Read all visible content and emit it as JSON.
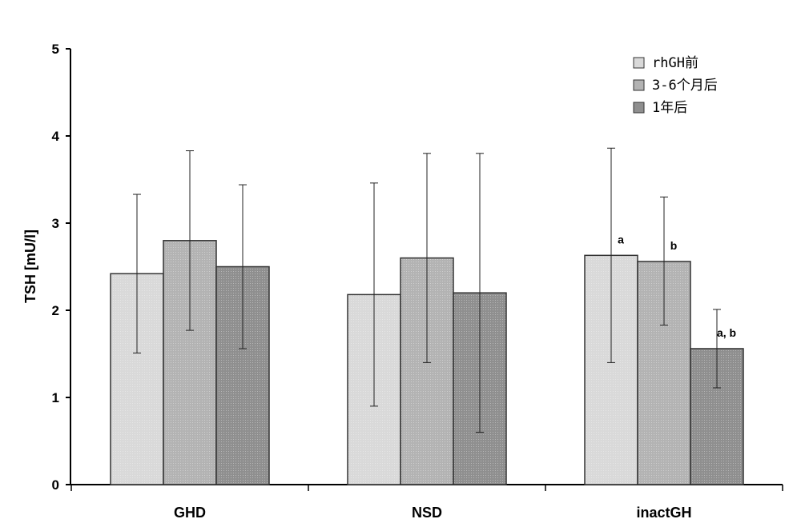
{
  "chart_data": {
    "type": "bar",
    "title": "",
    "xlabel": "",
    "ylabel": "TSH [mU/l]",
    "ylim": [
      0,
      5
    ],
    "yticks": [
      "0",
      "1",
      "2",
      "3",
      "4",
      "5"
    ],
    "grid": false,
    "legend_position": "top-right",
    "categories": [
      "GHD",
      "NSD",
      "inactGH"
    ],
    "series": [
      {
        "name": "rhGH前",
        "color": "#d9d9d9",
        "values": [
          2.42,
          2.18,
          2.63
        ],
        "error_low": [
          1.51,
          0.9,
          1.4
        ],
        "error_high": [
          3.33,
          3.46,
          3.86
        ],
        "annotations": [
          "",
          "",
          "a"
        ]
      },
      {
        "name": "3-6个月后",
        "color": "#b3b3b3",
        "values": [
          2.8,
          2.6,
          2.56
        ],
        "error_low": [
          1.77,
          1.4,
          1.83
        ],
        "error_high": [
          3.83,
          3.8,
          3.3
        ],
        "annotations": [
          "",
          "",
          "b"
        ]
      },
      {
        "name": "1年后",
        "color": "#8f8f8f",
        "values": [
          2.5,
          2.2,
          1.56
        ],
        "error_low": [
          1.56,
          0.6,
          1.11
        ],
        "error_high": [
          3.44,
          3.8,
          2.01
        ],
        "annotations": [
          "",
          "",
          "a, b"
        ]
      }
    ]
  }
}
